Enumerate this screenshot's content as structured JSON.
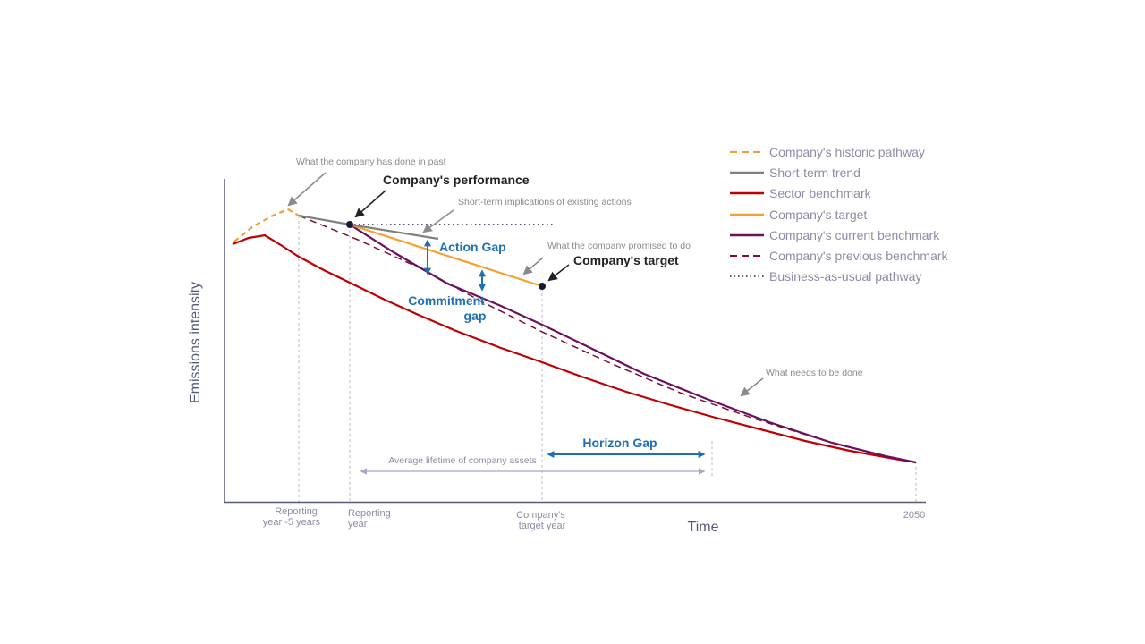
{
  "axes": {
    "ylabel": "Emissions intensity",
    "xlabel": "Time",
    "ticks": [
      "Reporting year -5 years",
      "Reporting year",
      "Company's target year",
      "2050"
    ]
  },
  "tick_lines": [
    [
      "Reporting",
      "year -5 years"
    ],
    [
      "Reporting",
      "year"
    ],
    [
      "Company's",
      "target year"
    ],
    [
      "2050"
    ]
  ],
  "labels": {
    "company_performance": "Company's performance",
    "company_target": "Company's target",
    "action_gap": "Action Gap",
    "commitment_gap": [
      "Commitment",
      "gap"
    ],
    "horizon_gap": "Horizon Gap",
    "past": "What the company has done in past",
    "short_term_implications": "Short-term implications of existing actions",
    "promised": "What the company promised to do",
    "needs_to_be_done": "What needs to be done",
    "asset_lifetime": "Average lifetime of company assets"
  },
  "legend": [
    {
      "label": "Company's historic pathway",
      "color": "#f0a030",
      "style": "dashed"
    },
    {
      "label": "Short-term trend",
      "color": "#808080",
      "style": "solid"
    },
    {
      "label": "Sector benchmark",
      "color": "#c00000",
      "style": "solid"
    },
    {
      "label": "Company's target",
      "color": "#f5a030",
      "style": "solid"
    },
    {
      "label": "Company's current benchmark",
      "color": "#6b1060",
      "style": "solid"
    },
    {
      "label": "Company's previous benchmark",
      "color": "#7a1030",
      "style": "dashed"
    },
    {
      "label": "Business-as-usual pathway",
      "color": "#4a5570",
      "style": "dotted"
    }
  ],
  "colors": {
    "annotation_blue": "#1f6fb5",
    "annotation_gray": "#8a8a8a",
    "axis": "#555a7a",
    "dark_label": "#222222",
    "guide": "#b8b8c8",
    "lifetime_arrow": "#a8a8c0"
  }
}
